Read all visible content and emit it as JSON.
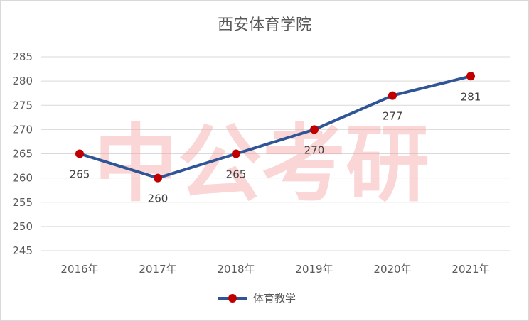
{
  "chart_data": {
    "type": "line",
    "title": "西安体育学院",
    "categories": [
      "2016年",
      "2017年",
      "2018年",
      "2019年",
      "2020年",
      "2021年"
    ],
    "series": [
      {
        "name": "体育教学",
        "values": [
          265,
          260,
          265,
          270,
          277,
          281
        ],
        "data_labels": [
          "265",
          "260",
          "265",
          "270",
          "277",
          "281"
        ]
      }
    ],
    "ylim": [
      245,
      285
    ],
    "yticks": [
      "245",
      "250",
      "255",
      "260",
      "265",
      "270",
      "275",
      "280",
      "285"
    ],
    "grid": true,
    "legend": "bottom",
    "line_color": "#2f5597",
    "marker_color": "#c00000",
    "watermark": "中公考研"
  }
}
